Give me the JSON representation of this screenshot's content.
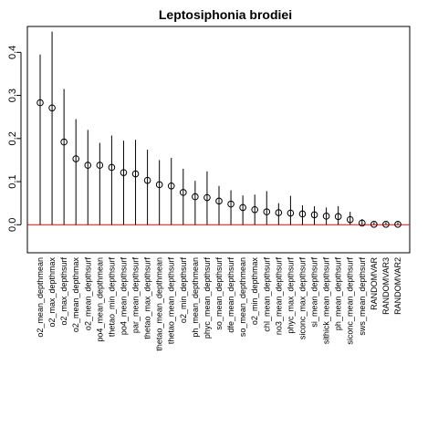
{
  "chart_data": {
    "type": "scatter",
    "title": "Leptosiphonia brodiei",
    "xlabel": "",
    "ylabel": "",
    "ylim": [
      -0.065,
      0.46
    ],
    "y_ticks": [
      0.0,
      0.1,
      0.2,
      0.3,
      0.4
    ],
    "y_tick_labels": [
      "0.0",
      "0.1",
      "0.2",
      "0.3",
      "0.4"
    ],
    "reference_line": {
      "y": 0,
      "color": "#ff0000"
    },
    "grid": false,
    "legend": "none",
    "categories": [
      "o2_mean_depthmean",
      "o2_max_depthmax",
      "o2_max_depthsurf",
      "o2_mean_depthmax",
      "o2_mean_depthsurf",
      "po4_mean_depthmean",
      "thetao_min_depthsurf",
      "po4_mean_depthsurf",
      "par_mean_depthsurf",
      "thetao_max_depthsurf",
      "thetao_mean_depthmean",
      "thetao_mean_depthsurf",
      "o2_min_depthsurf",
      "ph_mean_depthmean",
      "phyc_mean_depthsurf",
      "so_mean_depthsurf",
      "dfe_mean_depthsurf",
      "so_mean_depthmean",
      "o2_min_depthmax",
      "chl_mean_depthsurf",
      "no3_mean_depthsurf",
      "phyc_max_depthsurf",
      "siconc_max_depthsurf",
      "si_mean_depthsurf",
      "sithick_mean_depthsurf",
      "ph_mean_depthsurf",
      "siconc_mean_depthsurf",
      "sws_mean_depthsurf",
      "RANDOMVAR",
      "RANDOMVAR3",
      "RANDOMVAR2"
    ],
    "series": [
      {
        "values": [
          0.283,
          0.271,
          0.192,
          0.153,
          0.138,
          0.138,
          0.133,
          0.121,
          0.118,
          0.103,
          0.093,
          0.09,
          0.075,
          0.065,
          0.063,
          0.055,
          0.048,
          0.04,
          0.035,
          0.03,
          0.028,
          0.027,
          0.025,
          0.023,
          0.02,
          0.019,
          0.012,
          0.004,
          0.001,
          0.001,
          0.001
        ],
        "upper": [
          0.395,
          0.448,
          0.315,
          0.245,
          0.22,
          0.19,
          0.207,
          0.195,
          0.197,
          0.174,
          0.15,
          0.155,
          0.13,
          0.102,
          0.124,
          0.09,
          0.08,
          0.068,
          0.07,
          0.078,
          0.05,
          0.067,
          0.045,
          0.043,
          0.04,
          0.043,
          0.03,
          0.013,
          0.006,
          0.006,
          0.006
        ],
        "color": "#000000",
        "marker": "open-circle"
      }
    ]
  }
}
